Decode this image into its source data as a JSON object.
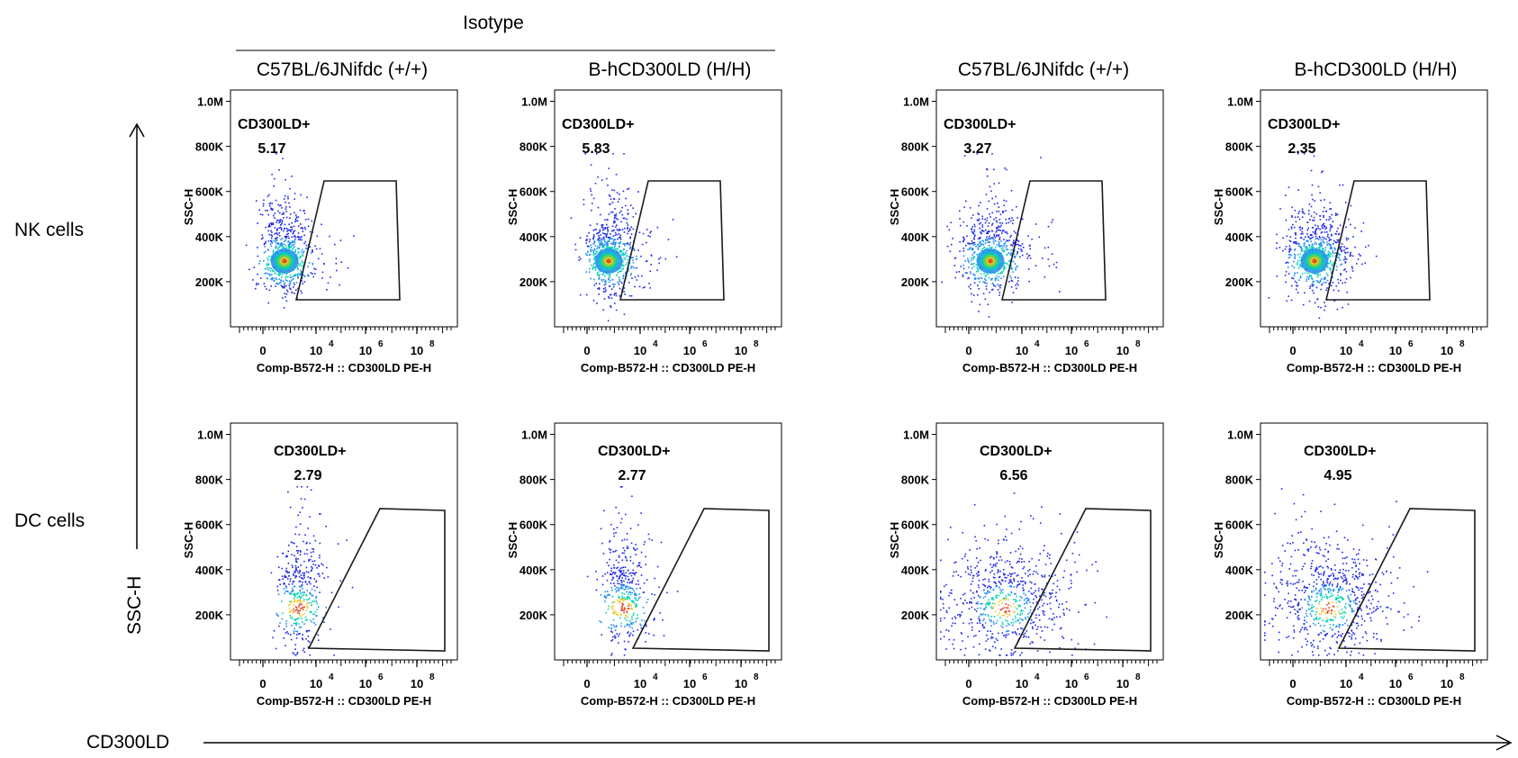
{
  "header": {
    "isotype_label": "Isotype",
    "columns": [
      "C57BL/6JNifdc (+/+)",
      "B-hCD300LD (H/H)",
      "C57BL/6JNifdc (+/+)",
      "B-hCD300LD (H/H)"
    ]
  },
  "rows": [
    "NK cells",
    "DC cells"
  ],
  "axes": {
    "global_y_label": "SSC-H",
    "global_x_label": "CD300LD",
    "panel_y_label": "SSC-H",
    "panel_x_label": "Comp-B572-H :: CD300LD PE-H",
    "y_ticks": [
      "1.0M",
      "800K",
      "600K",
      "400K",
      "200K"
    ],
    "y_tick_values": [
      1000000,
      800000,
      600000,
      400000,
      200000
    ],
    "x_ticks": [
      {
        "base": "0",
        "exp": ""
      },
      {
        "base": "10",
        "exp": "4"
      },
      {
        "base": "10",
        "exp": "6"
      },
      {
        "base": "10",
        "exp": "8"
      }
    ],
    "colors": {
      "dots_low": "#1e28e6",
      "dots_mid": "#00d2b4",
      "dots_high": "#e63c1e",
      "gate": "#1a1a1a"
    }
  },
  "chart_data": [
    {
      "type": "scatter",
      "row": "NK cells",
      "column": "C57BL/6JNifdc (+/+)",
      "group": "Isotype",
      "gate_name": "CD300LD+",
      "gate_value": "5.17",
      "xscale": "biexponential",
      "ylim": [
        0,
        1050000
      ]
    },
    {
      "type": "scatter",
      "row": "NK cells",
      "column": "B-hCD300LD (H/H)",
      "group": "Isotype",
      "gate_name": "CD300LD+",
      "gate_value": "5.83",
      "xscale": "biexponential",
      "ylim": [
        0,
        1050000
      ]
    },
    {
      "type": "scatter",
      "row": "NK cells",
      "column": "C57BL/6JNifdc (+/+)",
      "group": "",
      "gate_name": "CD300LD+",
      "gate_value": "3.27",
      "xscale": "biexponential",
      "ylim": [
        0,
        1050000
      ]
    },
    {
      "type": "scatter",
      "row": "NK cells",
      "column": "B-hCD300LD (H/H)",
      "group": "",
      "gate_name": "CD300LD+",
      "gate_value": "2.35",
      "xscale": "biexponential",
      "ylim": [
        0,
        1050000
      ]
    },
    {
      "type": "scatter",
      "row": "DC cells",
      "column": "C57BL/6JNifdc (+/+)",
      "group": "Isotype",
      "gate_name": "CD300LD+",
      "gate_value": "2.79",
      "xscale": "biexponential",
      "ylim": [
        0,
        1050000
      ]
    },
    {
      "type": "scatter",
      "row": "DC cells",
      "column": "B-hCD300LD (H/H)",
      "group": "Isotype",
      "gate_name": "CD300LD+",
      "gate_value": "2.77",
      "xscale": "biexponential",
      "ylim": [
        0,
        1050000
      ]
    },
    {
      "type": "scatter",
      "row": "DC cells",
      "column": "C57BL/6JNifdc (+/+)",
      "group": "",
      "gate_name": "CD300LD+",
      "gate_value": "6.56",
      "xscale": "biexponential",
      "ylim": [
        0,
        1050000
      ]
    },
    {
      "type": "scatter",
      "row": "DC cells",
      "column": "B-hCD300LD (H/H)",
      "group": "",
      "gate_name": "CD300LD+",
      "gate_value": "4.95",
      "xscale": "biexponential",
      "ylim": [
        0,
        1050000
      ]
    }
  ]
}
